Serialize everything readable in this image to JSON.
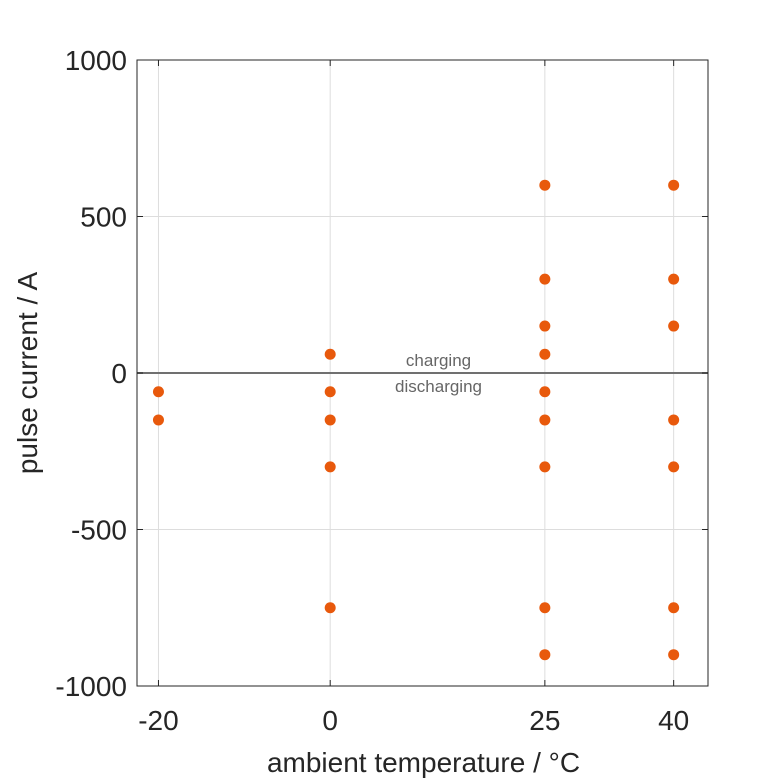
{
  "chart_data": {
    "type": "scatter",
    "xlabel": "ambient temperature / °C",
    "ylabel": "pulse current / A",
    "xlim": [
      -22.5,
      44
    ],
    "ylim": [
      -1000,
      1000
    ],
    "xticks": [
      -20,
      0,
      25,
      40
    ],
    "xtick_labels": [
      "-20",
      "0",
      "25",
      "40"
    ],
    "yticks": [
      -1000,
      -500,
      0,
      500,
      1000
    ],
    "ytick_labels": [
      "-1000",
      "-500",
      "0",
      "500",
      "1000"
    ],
    "grid": true,
    "reference_line_y": 0,
    "annotations": {
      "above": "charging",
      "below": "discharging"
    },
    "marker_color": "#E8590C",
    "line_color": "#707070",
    "points": [
      {
        "x": -20,
        "y": -60
      },
      {
        "x": -20,
        "y": -150
      },
      {
        "x": 0,
        "y": 60
      },
      {
        "x": 0,
        "y": -60
      },
      {
        "x": 0,
        "y": -150
      },
      {
        "x": 0,
        "y": -300
      },
      {
        "x": 0,
        "y": -750
      },
      {
        "x": 25,
        "y": 600
      },
      {
        "x": 25,
        "y": 300
      },
      {
        "x": 25,
        "y": 150
      },
      {
        "x": 25,
        "y": 60
      },
      {
        "x": 25,
        "y": -60
      },
      {
        "x": 25,
        "y": -150
      },
      {
        "x": 25,
        "y": -300
      },
      {
        "x": 25,
        "y": -750
      },
      {
        "x": 25,
        "y": -900
      },
      {
        "x": 40,
        "y": 600
      },
      {
        "x": 40,
        "y": 300
      },
      {
        "x": 40,
        "y": 150
      },
      {
        "x": 40,
        "y": -150
      },
      {
        "x": 40,
        "y": -300
      },
      {
        "x": 40,
        "y": -750
      },
      {
        "x": 40,
        "y": -900
      }
    ]
  }
}
